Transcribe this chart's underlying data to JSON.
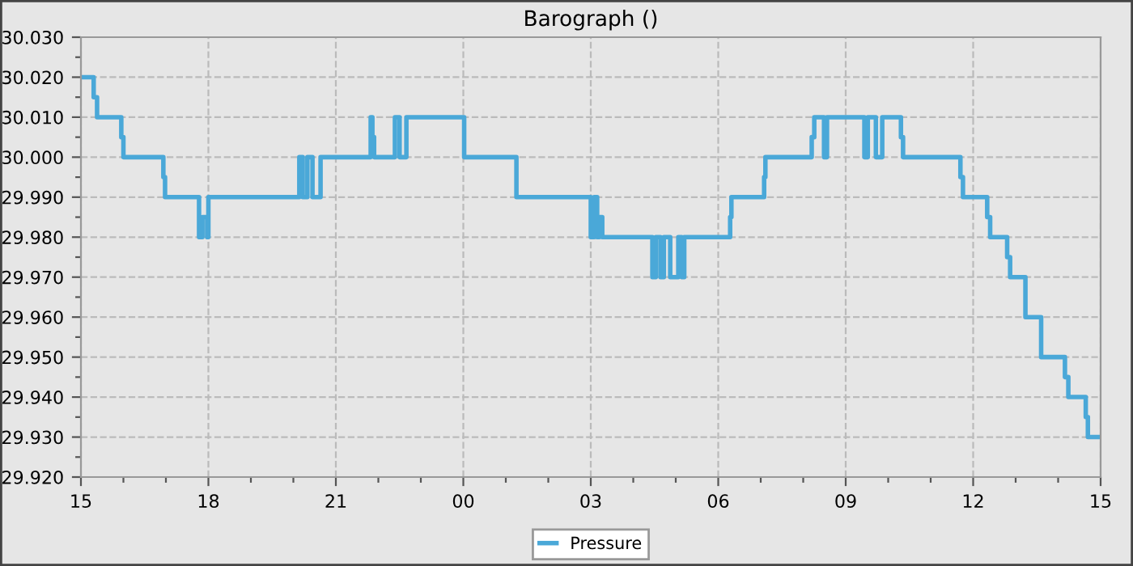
{
  "chart_data": {
    "type": "step",
    "title": "Barograph ()",
    "x": [
      15,
      15.3,
      15.38,
      15.95,
      16.0,
      16.94,
      16.98,
      17.78,
      17.86,
      17.97,
      18.0,
      20.14,
      20.22,
      20.33,
      20.45,
      20.64,
      21.82,
      21.86,
      21.9,
      22.39,
      22.5,
      22.66,
      24.02,
      25.25,
      27.0,
      27.08,
      27.15,
      27.2,
      27.27,
      28.45,
      28.53,
      28.64,
      28.72,
      28.87,
      29.06,
      29.14,
      29.2,
      30.28,
      30.31,
      31.08,
      31.11,
      32.2,
      32.26,
      32.49,
      32.56,
      33.44,
      33.52,
      33.71,
      33.86,
      34.3,
      34.35,
      35.7,
      35.76,
      36.33,
      36.4,
      36.8,
      36.87,
      37.23,
      37.6,
      38.16,
      38.24,
      38.65,
      38.7,
      39
    ],
    "series": [
      {
        "name": "Pressure",
        "color": "#4aa8d8",
        "values": [
          30.02,
          30.015,
          30.01,
          30.005,
          30.0,
          29.995,
          29.99,
          29.98,
          29.985,
          29.98,
          29.99,
          30.0,
          29.99,
          30.0,
          29.99,
          30.0,
          30.01,
          30.005,
          30.0,
          30.01,
          30.0,
          30.01,
          30.0,
          29.99,
          29.98,
          29.99,
          29.98,
          29.985,
          29.98,
          29.97,
          29.98,
          29.97,
          29.98,
          29.97,
          29.98,
          29.97,
          29.98,
          29.985,
          29.99,
          29.995,
          30.0,
          30.005,
          30.01,
          30.0,
          30.01,
          30.0,
          30.01,
          30.0,
          30.01,
          30.005,
          30.0,
          29.995,
          29.99,
          29.985,
          29.98,
          29.975,
          29.97,
          29.96,
          29.95,
          29.945,
          29.94,
          29.935,
          29.93,
          29.93
        ]
      }
    ],
    "xlim": [
      15,
      39
    ],
    "xticks": [
      {
        "value": 15,
        "label": "15"
      },
      {
        "value": 16,
        "label": null
      },
      {
        "value": 17,
        "label": null
      },
      {
        "value": 18,
        "label": "18"
      },
      {
        "value": 19,
        "label": null
      },
      {
        "value": 20,
        "label": null
      },
      {
        "value": 21,
        "label": "21"
      },
      {
        "value": 22,
        "label": null
      },
      {
        "value": 23,
        "label": null
      },
      {
        "value": 24,
        "label": "00"
      },
      {
        "value": 25,
        "label": null
      },
      {
        "value": 26,
        "label": null
      },
      {
        "value": 27,
        "label": "03"
      },
      {
        "value": 28,
        "label": null
      },
      {
        "value": 29,
        "label": null
      },
      {
        "value": 30,
        "label": "06"
      },
      {
        "value": 31,
        "label": null
      },
      {
        "value": 32,
        "label": null
      },
      {
        "value": 33,
        "label": "09"
      },
      {
        "value": 34,
        "label": null
      },
      {
        "value": 35,
        "label": null
      },
      {
        "value": 36,
        "label": "12"
      },
      {
        "value": 37,
        "label": null
      },
      {
        "value": 38,
        "label": null
      },
      {
        "value": 39,
        "label": "15"
      }
    ],
    "ylim": [
      29.92,
      30.03
    ],
    "yticks": [
      {
        "value": 29.92,
        "label": "29.920"
      },
      {
        "value": 29.925,
        "label": null
      },
      {
        "value": 29.93,
        "label": "29.930"
      },
      {
        "value": 29.935,
        "label": null
      },
      {
        "value": 29.94,
        "label": "29.940"
      },
      {
        "value": 29.945,
        "label": null
      },
      {
        "value": 29.95,
        "label": "29.950"
      },
      {
        "value": 29.955,
        "label": null
      },
      {
        "value": 29.96,
        "label": "29.960"
      },
      {
        "value": 29.965,
        "label": null
      },
      {
        "value": 29.97,
        "label": "29.970"
      },
      {
        "value": 29.975,
        "label": null
      },
      {
        "value": 29.98,
        "label": "29.980"
      },
      {
        "value": 29.985,
        "label": null
      },
      {
        "value": 29.99,
        "label": "29.990"
      },
      {
        "value": 29.995,
        "label": null
      },
      {
        "value": 30.0,
        "label": "30.000"
      },
      {
        "value": 30.005,
        "label": null
      },
      {
        "value": 30.01,
        "label": "30.010"
      },
      {
        "value": 30.015,
        "label": null
      },
      {
        "value": 30.02,
        "label": "30.020"
      },
      {
        "value": 30.025,
        "label": null
      },
      {
        "value": 30.03,
        "label": "30.030"
      }
    ],
    "grid": true,
    "legend": "bottom",
    "line_style": "solid"
  }
}
